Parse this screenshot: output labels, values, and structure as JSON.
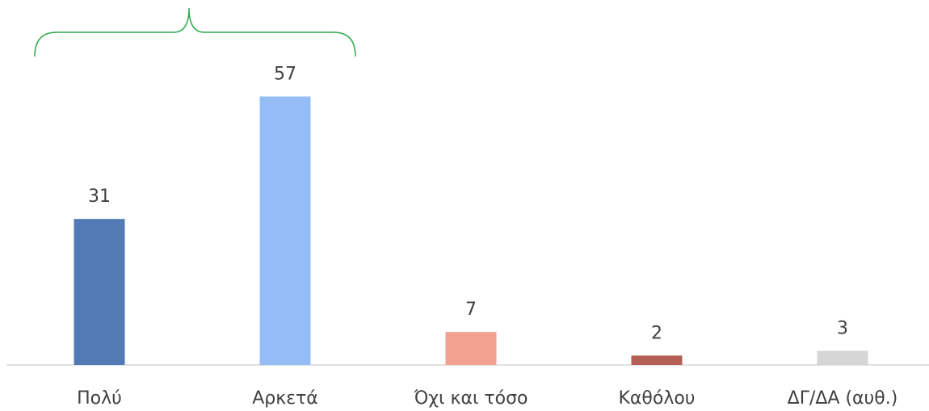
{
  "chart_data": {
    "type": "bar",
    "categories": [
      "Πολύ",
      "Αρκετά",
      "Όχι και τόσο",
      "Καθόλου",
      "ΔΓ/ΔΑ (αυθ.)"
    ],
    "values": [
      31,
      57,
      7,
      2,
      3
    ],
    "colors": [
      "#527bb5",
      "#95bdf5",
      "#f2a08f",
      "#b45e55",
      "#d5d5d5"
    ],
    "ylim": [
      0,
      60
    ],
    "grid": false
  }
}
